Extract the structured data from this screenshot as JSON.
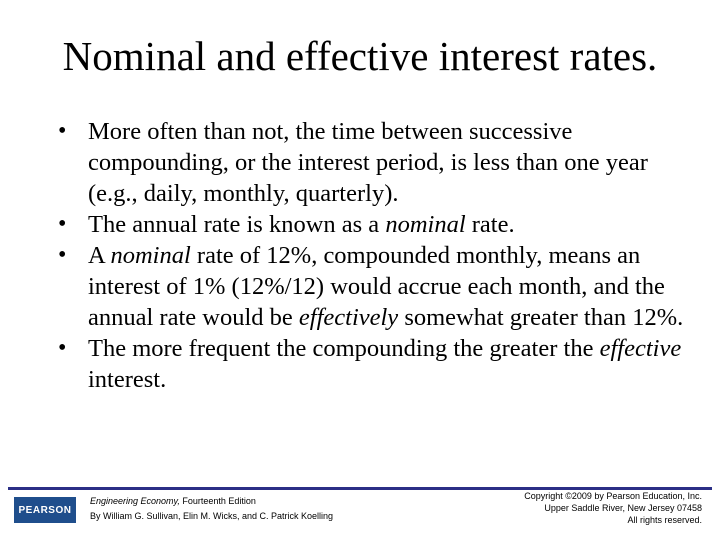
{
  "slide": {
    "title": "Nominal and effective interest rates.",
    "bullets": [
      {
        "segments": [
          {
            "text": "More often than not, the time between successive compounding, or the interest period, is less than one year (e.g., daily, monthly, quarterly).",
            "italic": false
          }
        ]
      },
      {
        "segments": [
          {
            "text": "The annual rate is known as a ",
            "italic": false
          },
          {
            "text": "nominal",
            "italic": true
          },
          {
            "text": " rate.",
            "italic": false
          }
        ]
      },
      {
        "segments": [
          {
            "text": "A ",
            "italic": false
          },
          {
            "text": "nominal",
            "italic": true
          },
          {
            "text": " rate of 12%, compounded monthly, means an interest of 1% (12%/12) would accrue each month, and the annual rate would be ",
            "italic": false
          },
          {
            "text": "effectively",
            "italic": true
          },
          {
            "text": " somewhat greater than 12%.",
            "italic": false
          }
        ]
      },
      {
        "segments": [
          {
            "text": "The more frequent the compounding the greater the ",
            "italic": false
          },
          {
            "text": "effective",
            "italic": true
          },
          {
            "text": " interest.",
            "italic": false
          }
        ]
      }
    ]
  },
  "footer": {
    "logo_text": "PEARSON",
    "book_title": "Engineering Economy,",
    "edition": " Fourteenth Edition",
    "authors": "By William G. Sullivan, Elin M. Wicks, and C. Patrick Koelling",
    "copyright": "Copyright ©2009 by Pearson Education, Inc.",
    "address": "Upper Saddle River, New Jersey 07458",
    "rights": "All rights reserved."
  },
  "colors": {
    "footer_rule": "#2b2f86",
    "logo_background": "#1f4e8c"
  }
}
